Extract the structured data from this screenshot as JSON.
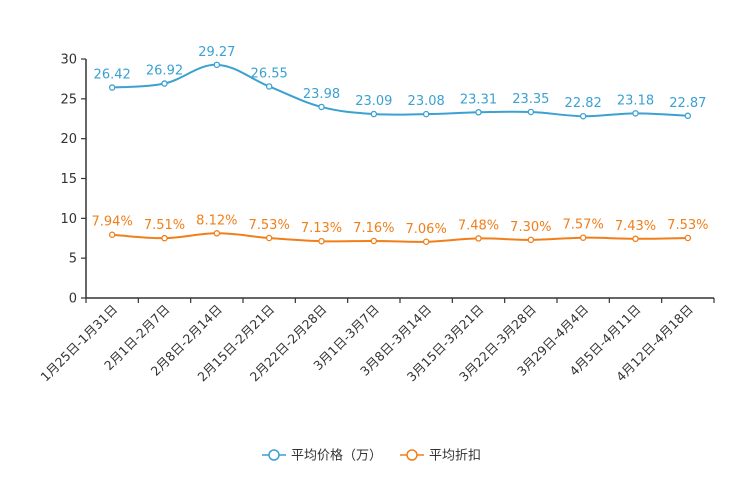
{
  "chart_data": {
    "type": "line",
    "title": "",
    "xlabel": "",
    "ylabel": "",
    "ylim": [
      0,
      30
    ],
    "yticks": [
      0,
      5,
      10,
      15,
      20,
      25,
      30
    ],
    "grid": false,
    "legend_position": "bottom",
    "categories": [
      "1月25日-1月31日",
      "2月1日-2月7日",
      "2月8日-2月14日",
      "2月15日-2月21日",
      "2月22日-2月28日",
      "3月1日-3月7日",
      "3月8日-3月14日",
      "3月15日-3月21日",
      "3月22日-3月28日",
      "3月29日-4月4日",
      "4月5日-4月11日",
      "4月12日-4月18日"
    ],
    "series": [
      {
        "name": "平均价格（万）",
        "color": "#3ba1d1",
        "values": [
          26.42,
          26.92,
          29.27,
          26.55,
          23.98,
          23.09,
          23.08,
          23.31,
          23.35,
          22.82,
          23.18,
          22.87
        ],
        "labels": [
          "26.42",
          "26.92",
          "29.27",
          "26.55",
          "23.98",
          "23.09",
          "23.08",
          "23.31",
          "23.35",
          "22.82",
          "23.18",
          "22.87"
        ]
      },
      {
        "name": "平均折扣",
        "color": "#f07f1a",
        "values": [
          7.94,
          7.51,
          8.12,
          7.53,
          7.13,
          7.16,
          7.06,
          7.48,
          7.3,
          7.57,
          7.43,
          7.53
        ],
        "labels": [
          "7.94%",
          "7.51%",
          "8.12%",
          "7.53%",
          "7.13%",
          "7.16%",
          "7.06%",
          "7.48%",
          "7.30%",
          "7.57%",
          "7.43%",
          "7.53%"
        ]
      }
    ]
  }
}
